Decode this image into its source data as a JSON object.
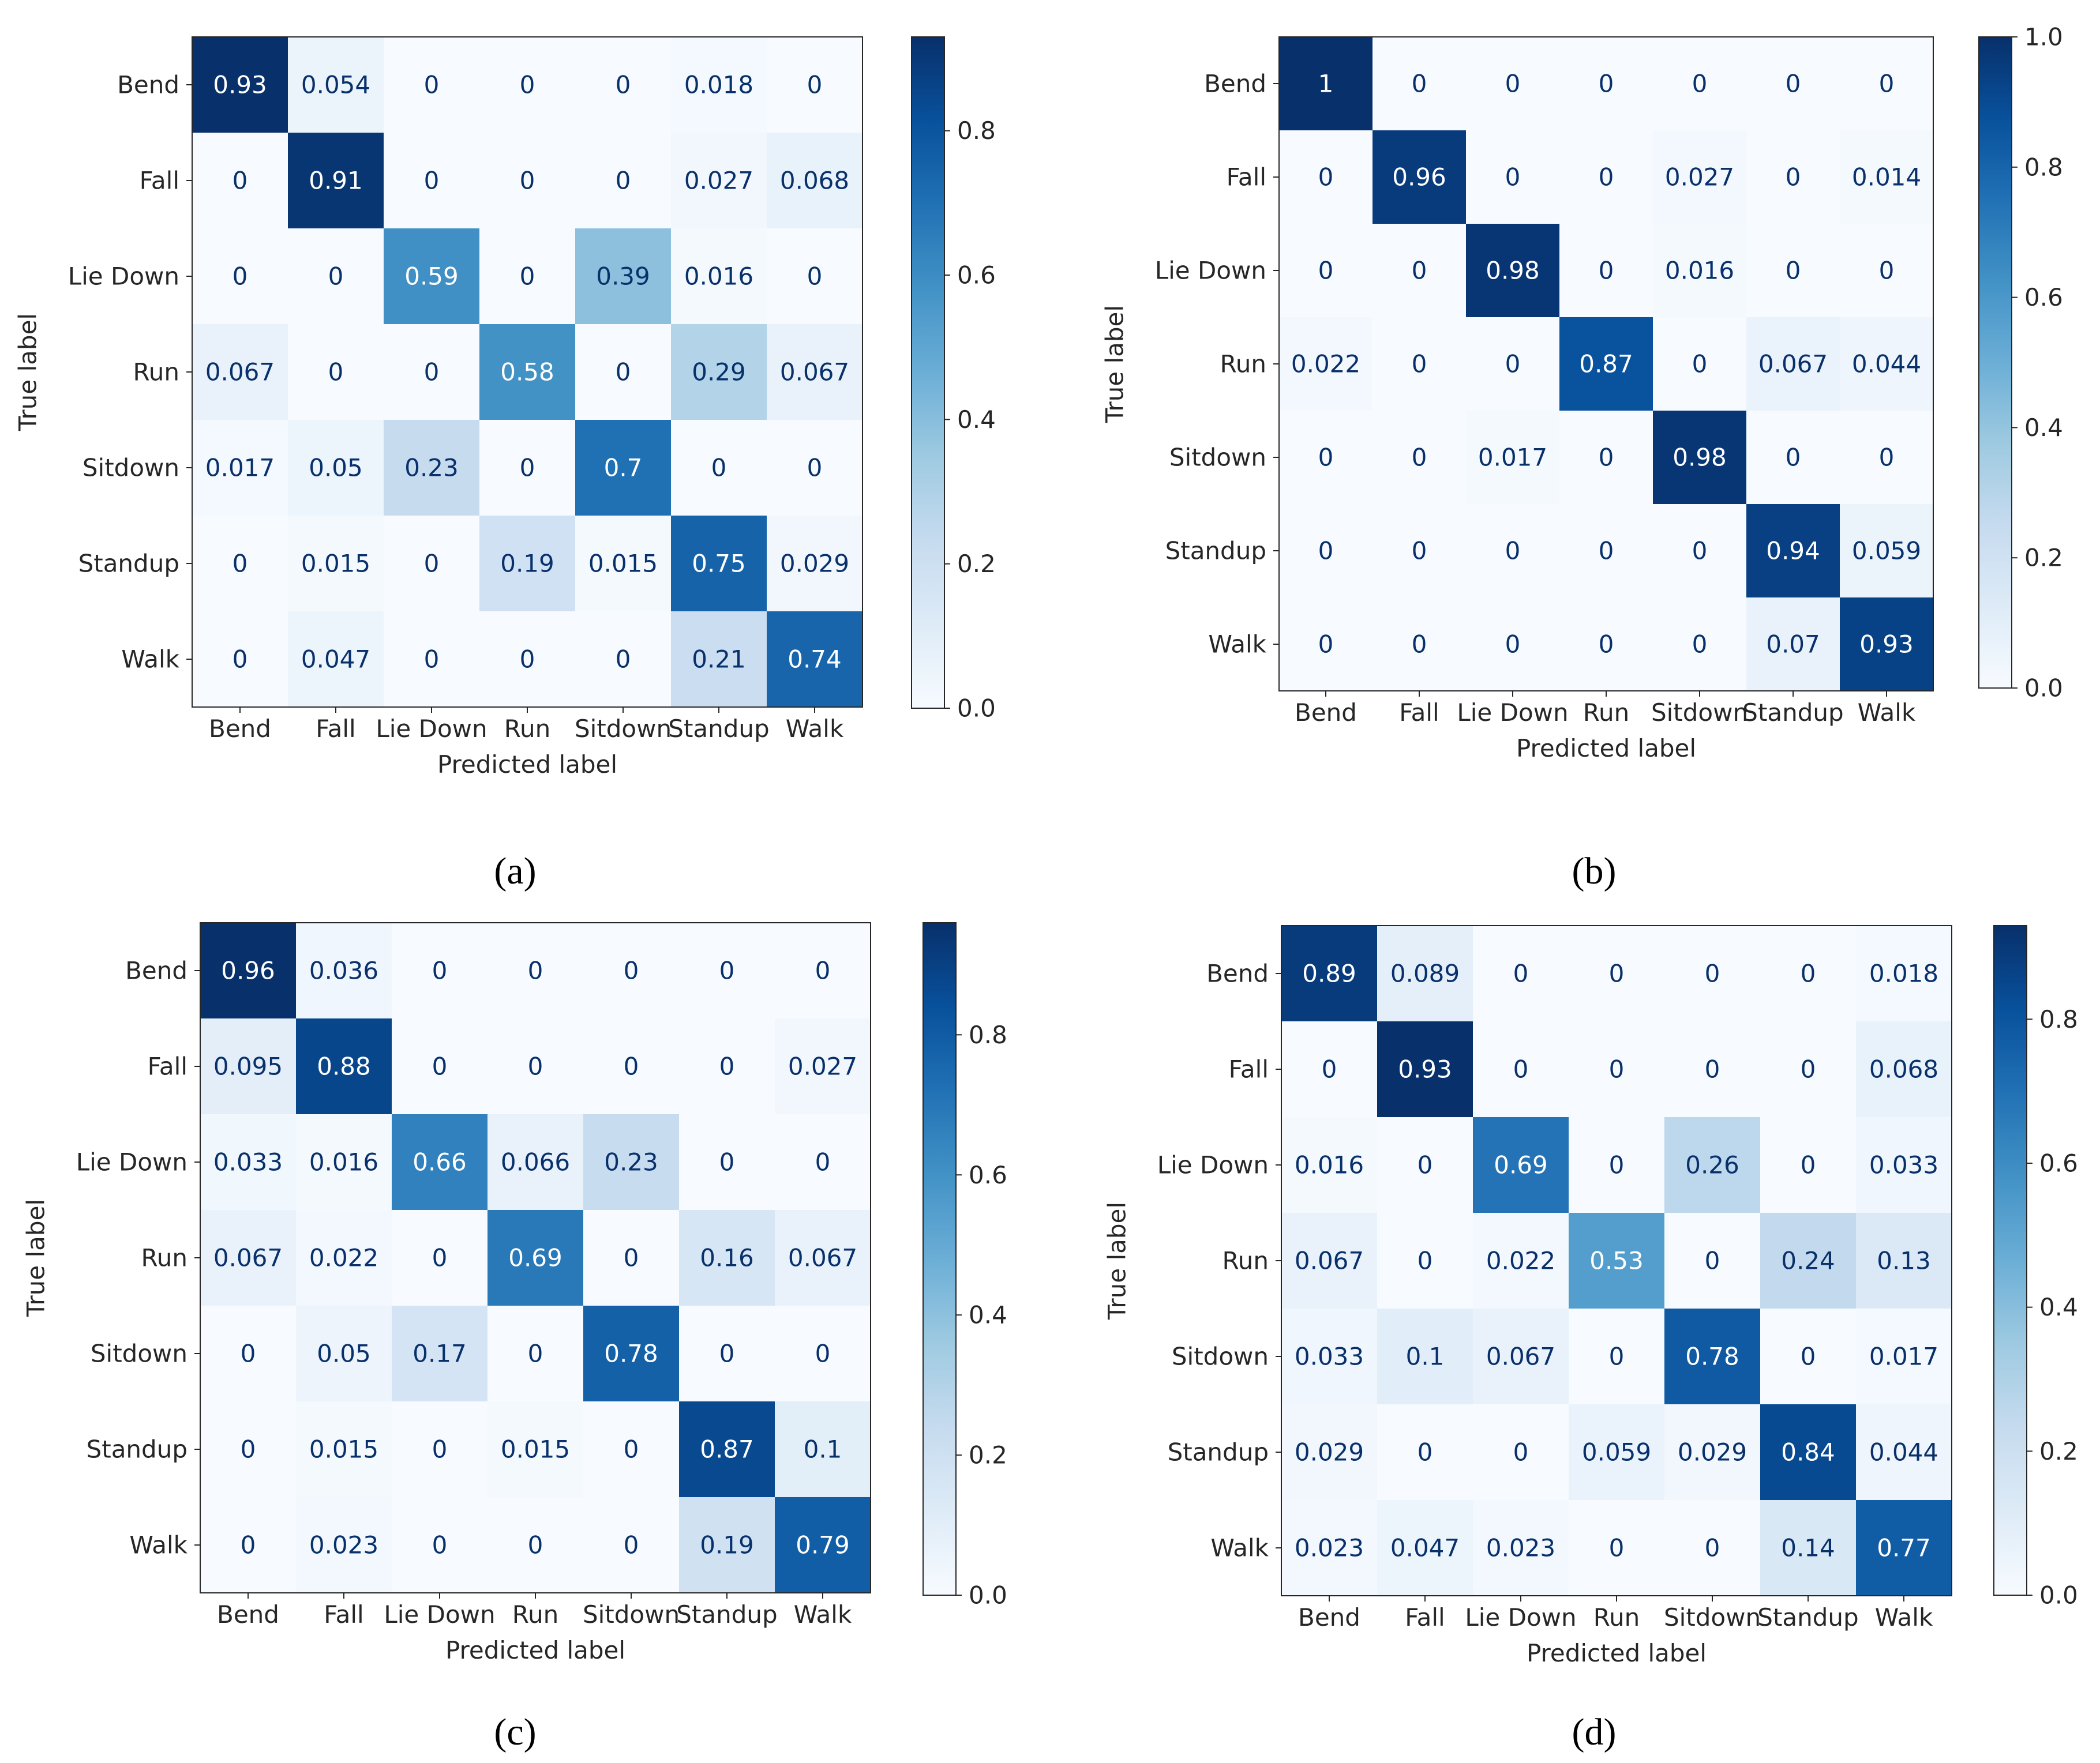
{
  "colormap": [
    "#f7fbff",
    "#deebf7",
    "#c6dbef",
    "#9ecae1",
    "#6baed6",
    "#4292c6",
    "#2171b5",
    "#08519c",
    "#08306b"
  ],
  "colors": {
    "text_dark": "#08306b",
    "text_light": "#ffffff",
    "axis": "#262626"
  },
  "chart_data": [
    {
      "type": "heatmap",
      "panel_label": "(a)",
      "title": "",
      "xlabel": "Predicted label",
      "ylabel": "True label",
      "categories": [
        "Bend",
        "Fall",
        "Lie Down",
        "Run",
        "Sitdown",
        "Standup",
        "Walk"
      ],
      "values": [
        [
          0.93,
          0.054,
          0,
          0,
          0,
          0.018,
          0
        ],
        [
          0,
          0.91,
          0,
          0,
          0,
          0.027,
          0.068
        ],
        [
          0,
          0,
          0.59,
          0,
          0.39,
          0.016,
          0
        ],
        [
          0.067,
          0,
          0,
          0.58,
          0,
          0.29,
          0.067
        ],
        [
          0.017,
          0.05,
          0.23,
          0,
          0.7,
          0,
          0
        ],
        [
          0,
          0.015,
          0,
          0.19,
          0.015,
          0.75,
          0.029
        ],
        [
          0,
          0.047,
          0,
          0,
          0,
          0.21,
          0.74
        ]
      ],
      "labels": [
        [
          "0.93",
          "0.054",
          "0",
          "0",
          "0",
          "0.018",
          "0"
        ],
        [
          "0",
          "0.91",
          "0",
          "0",
          "0",
          "0.027",
          "0.068"
        ],
        [
          "0",
          "0",
          "0.59",
          "0",
          "0.39",
          "0.016",
          "0"
        ],
        [
          "0.067",
          "0",
          "0",
          "0.58",
          "0",
          "0.29",
          "0.067"
        ],
        [
          "0.017",
          "0.05",
          "0.23",
          "0",
          "0.7",
          "0",
          "0"
        ],
        [
          "0",
          "0.015",
          "0",
          "0.19",
          "0.015",
          "0.75",
          "0.029"
        ],
        [
          "0",
          "0.047",
          "0",
          "0",
          "0",
          "0.21",
          "0.74"
        ]
      ],
      "colorbar": {
        "range": [
          0.0,
          0.93
        ],
        "ticks": [
          0.0,
          0.2,
          0.4,
          0.6,
          0.8
        ],
        "tick_labels": [
          "0.0",
          "0.2",
          "0.4",
          "0.6",
          "0.8"
        ]
      }
    },
    {
      "type": "heatmap",
      "panel_label": "(b)",
      "title": "",
      "xlabel": "Predicted label",
      "ylabel": "True label",
      "categories": [
        "Bend",
        "Fall",
        "Lie Down",
        "Run",
        "Sitdown",
        "Standup",
        "Walk"
      ],
      "values": [
        [
          1,
          0,
          0,
          0,
          0,
          0,
          0
        ],
        [
          0,
          0.96,
          0,
          0,
          0.027,
          0,
          0.014
        ],
        [
          0,
          0,
          0.98,
          0,
          0.016,
          0,
          0
        ],
        [
          0.022,
          0,
          0,
          0.87,
          0,
          0.067,
          0.044
        ],
        [
          0,
          0,
          0.017,
          0,
          0.98,
          0,
          0
        ],
        [
          0,
          0,
          0,
          0,
          0,
          0.94,
          0.059
        ],
        [
          0,
          0,
          0,
          0,
          0,
          0.07,
          0.93
        ]
      ],
      "labels": [
        [
          "1",
          "0",
          "0",
          "0",
          "0",
          "0",
          "0"
        ],
        [
          "0",
          "0.96",
          "0",
          "0",
          "0.027",
          "0",
          "0.014"
        ],
        [
          "0",
          "0",
          "0.98",
          "0",
          "0.016",
          "0",
          "0"
        ],
        [
          "0.022",
          "0",
          "0",
          "0.87",
          "0",
          "0.067",
          "0.044"
        ],
        [
          "0",
          "0",
          "0.017",
          "0",
          "0.98",
          "0",
          "0"
        ],
        [
          "0",
          "0",
          "0",
          "0",
          "0",
          "0.94",
          "0.059"
        ],
        [
          "0",
          "0",
          "0",
          "0",
          "0",
          "0.07",
          "0.93"
        ]
      ],
      "colorbar": {
        "range": [
          0.0,
          1.0
        ],
        "ticks": [
          0.0,
          0.2,
          0.4,
          0.6,
          0.8,
          1.0
        ],
        "tick_labels": [
          "0.0",
          "0.2",
          "0.4",
          "0.6",
          "0.8",
          "1.0"
        ]
      }
    },
    {
      "type": "heatmap",
      "panel_label": "(c)",
      "title": "",
      "xlabel": "Predicted label",
      "ylabel": "True label",
      "categories": [
        "Bend",
        "Fall",
        "Lie Down",
        "Run",
        "Sitdown",
        "Standup",
        "Walk"
      ],
      "values": [
        [
          0.96,
          0.036,
          0,
          0,
          0,
          0,
          0
        ],
        [
          0.095,
          0.88,
          0,
          0,
          0,
          0,
          0.027
        ],
        [
          0.033,
          0.016,
          0.66,
          0.066,
          0.23,
          0,
          0
        ],
        [
          0.067,
          0.022,
          0,
          0.69,
          0,
          0.16,
          0.067
        ],
        [
          0,
          0.05,
          0.17,
          0,
          0.78,
          0,
          0
        ],
        [
          0,
          0.015,
          0,
          0.015,
          0,
          0.87,
          0.1
        ],
        [
          0,
          0.023,
          0,
          0,
          0,
          0.19,
          0.79
        ]
      ],
      "labels": [
        [
          "0.96",
          "0.036",
          "0",
          "0",
          "0",
          "0",
          "0"
        ],
        [
          "0.095",
          "0.88",
          "0",
          "0",
          "0",
          "0",
          "0.027"
        ],
        [
          "0.033",
          "0.016",
          "0.66",
          "0.066",
          "0.23",
          "0",
          "0"
        ],
        [
          "0.067",
          "0.022",
          "0",
          "0.69",
          "0",
          "0.16",
          "0.067"
        ],
        [
          "0",
          "0.05",
          "0.17",
          "0",
          "0.78",
          "0",
          "0"
        ],
        [
          "0",
          "0.015",
          "0",
          "0.015",
          "0",
          "0.87",
          "0.1"
        ],
        [
          "0",
          "0.023",
          "0",
          "0",
          "0",
          "0.19",
          "0.79"
        ]
      ],
      "colorbar": {
        "range": [
          0.0,
          0.96
        ],
        "ticks": [
          0.0,
          0.2,
          0.4,
          0.6,
          0.8
        ],
        "tick_labels": [
          "0.0",
          "0.2",
          "0.4",
          "0.6",
          "0.8"
        ]
      }
    },
    {
      "type": "heatmap",
      "panel_label": "(d)",
      "title": "",
      "xlabel": "Predicted label",
      "ylabel": "True label",
      "categories": [
        "Bend",
        "Fall",
        "Lie Down",
        "Run",
        "Sitdown",
        "Standup",
        "Walk"
      ],
      "values": [
        [
          0.89,
          0.089,
          0,
          0,
          0,
          0,
          0.018
        ],
        [
          0,
          0.93,
          0,
          0,
          0,
          0,
          0.068
        ],
        [
          0.016,
          0,
          0.69,
          0,
          0.26,
          0,
          0.033
        ],
        [
          0.067,
          0,
          0.022,
          0.53,
          0,
          0.24,
          0.13
        ],
        [
          0.033,
          0.1,
          0.067,
          0,
          0.78,
          0,
          0.017
        ],
        [
          0.029,
          0,
          0,
          0.059,
          0.029,
          0.84,
          0.044
        ],
        [
          0.023,
          0.047,
          0.023,
          0,
          0,
          0.14,
          0.77
        ]
      ],
      "labels": [
        [
          "0.89",
          "0.089",
          "0",
          "0",
          "0",
          "0",
          "0.018"
        ],
        [
          "0",
          "0.93",
          "0",
          "0",
          "0",
          "0",
          "0.068"
        ],
        [
          "0.016",
          "0",
          "0.69",
          "0",
          "0.26",
          "0",
          "0.033"
        ],
        [
          "0.067",
          "0",
          "0.022",
          "0.53",
          "0",
          "0.24",
          "0.13"
        ],
        [
          "0.033",
          "0.1",
          "0.067",
          "0",
          "0.78",
          "0",
          "0.017"
        ],
        [
          "0.029",
          "0",
          "0",
          "0.059",
          "0.029",
          "0.84",
          "0.044"
        ],
        [
          "0.023",
          "0.047",
          "0.023",
          "0",
          "0",
          "0.14",
          "0.77"
        ]
      ],
      "colorbar": {
        "range": [
          0.0,
          0.93
        ],
        "ticks": [
          0.0,
          0.2,
          0.4,
          0.6,
          0.8
        ],
        "tick_labels": [
          "0.0",
          "0.2",
          "0.4",
          "0.6",
          "0.8"
        ]
      }
    }
  ]
}
